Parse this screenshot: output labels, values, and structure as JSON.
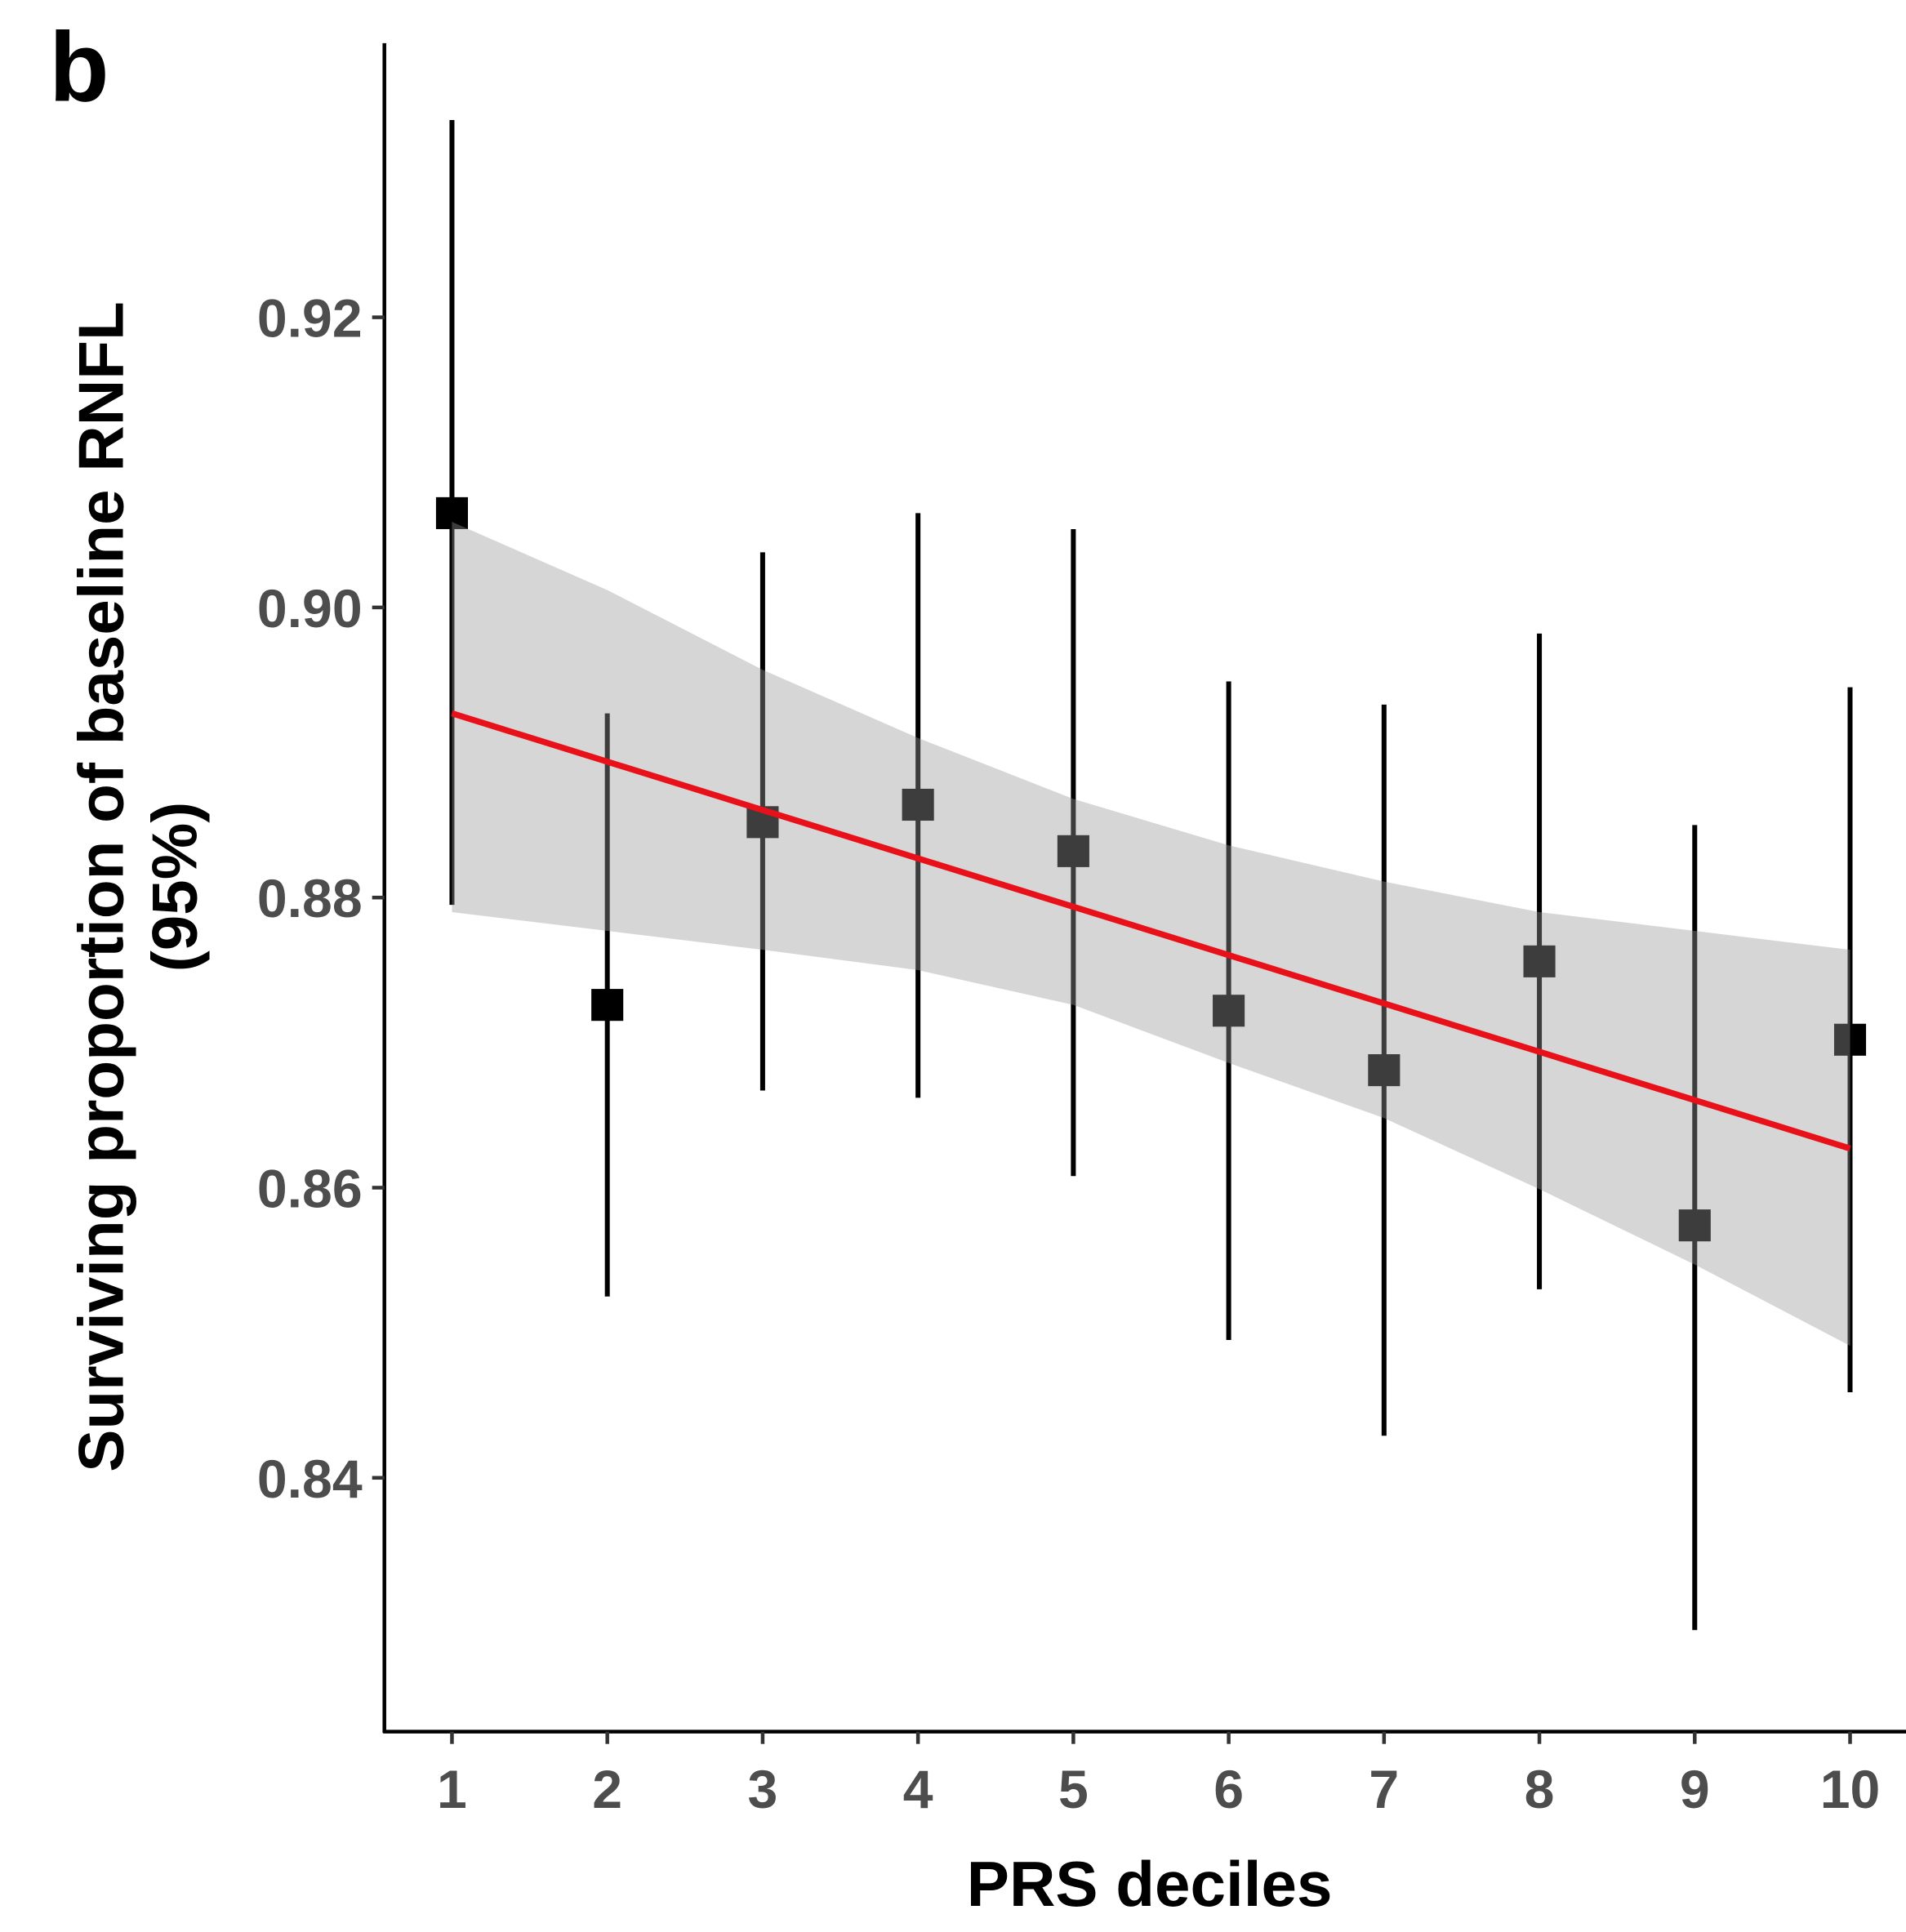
{
  "chart_data": {
    "type": "errorbar",
    "panel_label": "b",
    "x_label": "PRS deciles",
    "y_label": [
      "Surviving proportion of baseline RNFL",
      "(95%)"
    ],
    "x": [
      1,
      2,
      3,
      4,
      5,
      6,
      7,
      8,
      9,
      10
    ],
    "values": [
      0.9065,
      0.8726,
      0.8852,
      0.8864,
      0.8832,
      0.8722,
      0.8681,
      0.8756,
      0.8574,
      0.8702
    ],
    "lower": [
      0.8795,
      0.8525,
      0.8667,
      0.8662,
      0.8608,
      0.8495,
      0.8429,
      0.853,
      0.8295,
      0.8459
    ],
    "upper": [
      0.9336,
      0.8927,
      0.9038,
      0.9065,
      0.9054,
      0.8949,
      0.8933,
      0.8982,
      0.885,
      0.8945
    ],
    "color": "#000000",
    "fit": {
      "color": "#e8111a",
      "x": [
        1,
        10
      ],
      "values": [
        0.8927,
        0.8627
      ]
    },
    "band": {
      "color": "#999999",
      "x": [
        1,
        2,
        3,
        4,
        5,
        6,
        7,
        8,
        9,
        10
      ],
      "lower": [
        0.879,
        0.8777,
        0.8764,
        0.875,
        0.8726,
        0.8686,
        0.8648,
        0.8599,
        0.8547,
        0.8491
      ],
      "upper": [
        0.9059,
        0.9012,
        0.8957,
        0.891,
        0.8868,
        0.8836,
        0.8811,
        0.879,
        0.8777,
        0.8764
      ]
    },
    "xlim": [
      0.565,
      10.36
    ],
    "ylim": [
      0.8225,
      0.9389
    ],
    "xticks": [
      1,
      2,
      3,
      4,
      5,
      6,
      7,
      8,
      9,
      10
    ],
    "yticks": [
      0.84,
      0.86,
      0.88,
      {
        "value": 0.9,
        "label": "0.90"
      },
      0.92
    ],
    "grid": false
  }
}
